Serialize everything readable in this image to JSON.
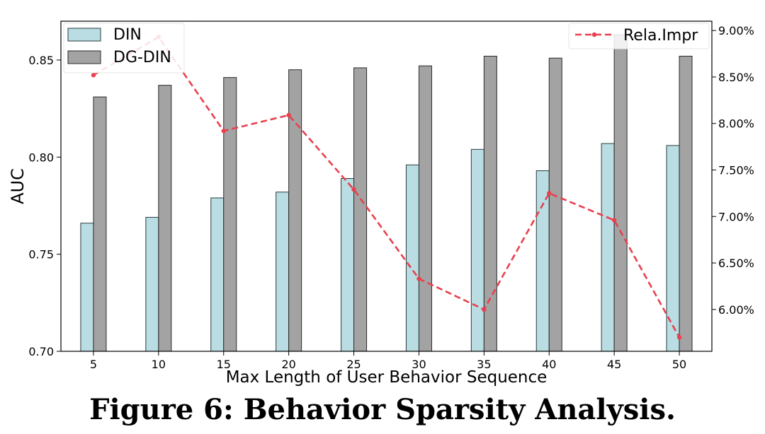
{
  "figure": {
    "caption": "Figure 6: Behavior Sparsity Analysis."
  },
  "chart_data": {
    "type": "bar",
    "xlabel": "Max Length of User Behavior Sequence",
    "ylabel": "AUC",
    "y2label": "",
    "categories": [
      "5",
      "10",
      "15",
      "20",
      "25",
      "30",
      "35",
      "40",
      "45",
      "50"
    ],
    "ylim": [
      0.7,
      0.87
    ],
    "yticks": [
      "0.70",
      "0.75",
      "0.80",
      "0.85"
    ],
    "yticks_values": [
      0.7,
      0.75,
      0.8,
      0.85
    ],
    "y2lim": [
      5.55,
      9.1
    ],
    "y2ticks": [
      "6.00%",
      "6.50%",
      "7.00%",
      "7.50%",
      "8.00%",
      "8.50%",
      "9.00%"
    ],
    "y2ticks_values": [
      6.0,
      6.5,
      7.0,
      7.5,
      8.0,
      8.5,
      9.0
    ],
    "grid": false,
    "series": [
      {
        "name": "DIN",
        "kind": "bar",
        "color": "#b9dde2",
        "values": [
          0.766,
          0.769,
          0.779,
          0.782,
          0.789,
          0.796,
          0.804,
          0.793,
          0.807,
          0.806
        ]
      },
      {
        "name": "DG-DIN",
        "kind": "bar",
        "color": "#a3a3a3",
        "values": [
          0.831,
          0.837,
          0.841,
          0.845,
          0.846,
          0.847,
          0.852,
          0.851,
          0.863,
          0.852
        ]
      },
      {
        "name": "Rela.Impr",
        "kind": "line",
        "axis": "right",
        "color": "#e8404f",
        "values": [
          8.52,
          8.93,
          7.92,
          8.09,
          7.29,
          6.33,
          6.0,
          7.25,
          6.96,
          5.7
        ]
      }
    ],
    "legend_left": {
      "placement": "top-left",
      "entries": [
        "DIN",
        "DG-DIN"
      ]
    },
    "legend_right": {
      "placement": "top-right",
      "entries": [
        "Rela.Impr"
      ]
    }
  }
}
